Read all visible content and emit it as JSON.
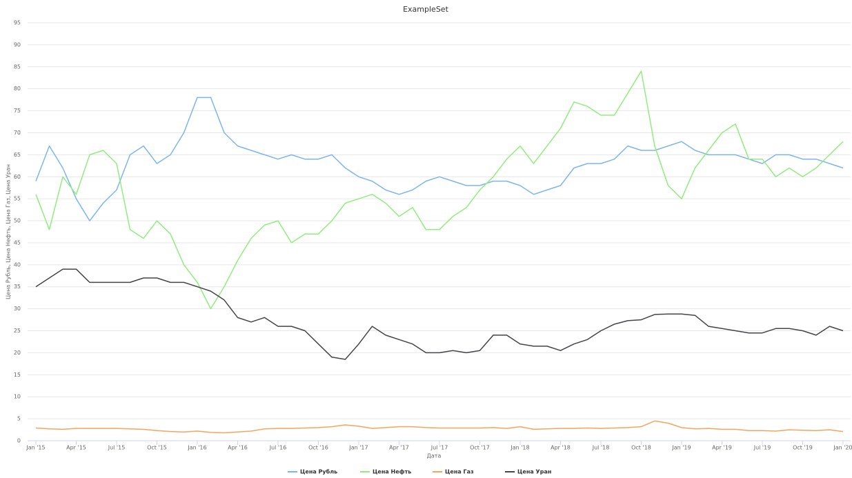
{
  "chart_data": {
    "type": "line",
    "title": "ExampleSet",
    "x_label": "Дата",
    "y_label": "Цена Рубль, Цена Нефть, Цена Газ, Цена Уран",
    "x": [
      "2015-01",
      "2015-02",
      "2015-03",
      "2015-04",
      "2015-05",
      "2015-06",
      "2015-07",
      "2015-08",
      "2015-09",
      "2015-10",
      "2015-11",
      "2015-12",
      "2016-01",
      "2016-02",
      "2016-03",
      "2016-04",
      "2016-05",
      "2016-06",
      "2016-07",
      "2016-08",
      "2016-09",
      "2016-10",
      "2016-11",
      "2016-12",
      "2017-01",
      "2017-02",
      "2017-03",
      "2017-04",
      "2017-05",
      "2017-06",
      "2017-07",
      "2017-08",
      "2017-09",
      "2017-10",
      "2017-11",
      "2017-12",
      "2018-01",
      "2018-02",
      "2018-03",
      "2018-04",
      "2018-05",
      "2018-06",
      "2018-07",
      "2018-08",
      "2018-09",
      "2018-10",
      "2018-11",
      "2018-12",
      "2019-01",
      "2019-02",
      "2019-03",
      "2019-04",
      "2019-05",
      "2019-06",
      "2019-07",
      "2019-08",
      "2019-09",
      "2019-10",
      "2019-11",
      "2019-12",
      "2020-01"
    ],
    "xticks": [
      {
        "value": "2015-01",
        "label": "Jan '15"
      },
      {
        "value": "2015-04",
        "label": "Apr '15"
      },
      {
        "value": "2015-07",
        "label": "Jul '15"
      },
      {
        "value": "2015-10",
        "label": "Oct '15"
      },
      {
        "value": "2016-01",
        "label": "Jan '16"
      },
      {
        "value": "2016-04",
        "label": "Apr '16"
      },
      {
        "value": "2016-07",
        "label": "Jul '16"
      },
      {
        "value": "2016-10",
        "label": "Oct '16"
      },
      {
        "value": "2017-01",
        "label": "Jan '17"
      },
      {
        "value": "2017-04",
        "label": "Apr '17"
      },
      {
        "value": "2017-07",
        "label": "Jul '17"
      },
      {
        "value": "2017-10",
        "label": "Oct '17"
      },
      {
        "value": "2018-01",
        "label": "Jan '18"
      },
      {
        "value": "2018-04",
        "label": "Apr '18"
      },
      {
        "value": "2018-07",
        "label": "Jul '18"
      },
      {
        "value": "2018-10",
        "label": "Oct '18"
      },
      {
        "value": "2019-01",
        "label": "Jan '19"
      },
      {
        "value": "2019-04",
        "label": "Apr '19"
      },
      {
        "value": "2019-07",
        "label": "Jul '19"
      },
      {
        "value": "2019-10",
        "label": "Oct '19"
      },
      {
        "value": "2020-01",
        "label": "Jan '20"
      }
    ],
    "ylim": [
      0,
      95
    ],
    "yticks": [
      0,
      5,
      10,
      15,
      20,
      25,
      30,
      35,
      40,
      45,
      50,
      55,
      60,
      65,
      70,
      75,
      80,
      85,
      90,
      95
    ],
    "grid": true,
    "legend": "bottom",
    "series": [
      {
        "name": "Цена Рубль",
        "color": "#7cb5ec",
        "values": [
          59,
          67,
          62,
          55,
          50,
          54,
          57,
          65,
          67,
          63,
          65,
          70,
          78,
          78,
          70,
          67,
          66,
          65,
          64,
          65,
          64,
          64,
          65,
          62,
          60,
          59,
          57,
          56,
          57,
          59,
          60,
          59,
          58,
          58,
          59,
          59,
          58,
          56,
          57,
          58,
          62,
          63,
          63,
          64,
          67,
          66,
          66,
          67,
          68,
          66,
          65,
          65,
          65,
          64,
          63,
          65,
          65,
          64,
          64,
          63,
          62
        ]
      },
      {
        "name": "Цена Нефть",
        "color": "#90ed7d",
        "values": [
          56,
          48,
          60,
          56,
          65,
          66,
          63,
          48,
          46,
          50,
          47,
          40,
          36,
          30,
          35,
          41,
          46,
          49,
          50,
          45,
          47,
          47,
          50,
          54,
          55,
          56,
          54,
          51,
          53,
          48,
          48,
          51,
          53,
          57,
          60,
          64,
          67,
          63,
          67,
          71,
          77,
          76,
          74,
          74,
          79,
          84,
          67,
          58,
          55,
          62,
          66,
          70,
          72,
          64,
          64,
          60,
          62,
          60,
          62,
          65,
          68
        ]
      },
      {
        "name": "Цена Газ",
        "color": "#f7a35c",
        "values": [
          2.9,
          2.7,
          2.6,
          2.8,
          2.8,
          2.8,
          2.8,
          2.7,
          2.6,
          2.3,
          2.1,
          2.0,
          2.2,
          1.9,
          1.8,
          2.0,
          2.2,
          2.7,
          2.8,
          2.8,
          2.9,
          3.0,
          3.2,
          3.6,
          3.3,
          2.8,
          3.0,
          3.2,
          3.2,
          3.0,
          2.9,
          2.9,
          2.9,
          2.9,
          3.0,
          2.8,
          3.2,
          2.6,
          2.7,
          2.8,
          2.8,
          2.9,
          2.8,
          2.9,
          3.0,
          3.2,
          4.5,
          4.0,
          3.0,
          2.7,
          2.8,
          2.6,
          2.6,
          2.3,
          2.3,
          2.2,
          2.5,
          2.4,
          2.3,
          2.5,
          2.1
        ]
      },
      {
        "name": "Цена Уран",
        "color": "#434348",
        "values": [
          35,
          37,
          39,
          39,
          36,
          36,
          36,
          36,
          37,
          37,
          36,
          36,
          35,
          34,
          32,
          28,
          27,
          28,
          26,
          26,
          25,
          22,
          19,
          18.5,
          22,
          26,
          24,
          23,
          22,
          20,
          20,
          20.5,
          20,
          20.5,
          24,
          24,
          22,
          21.5,
          21.5,
          20.5,
          22,
          23,
          25,
          26.5,
          27.3,
          27.5,
          28.7,
          28.8,
          28.8,
          28.5,
          26,
          25.5,
          25,
          24.5,
          24.5,
          25.5,
          25.5,
          25,
          24,
          26,
          25
        ]
      }
    ]
  }
}
